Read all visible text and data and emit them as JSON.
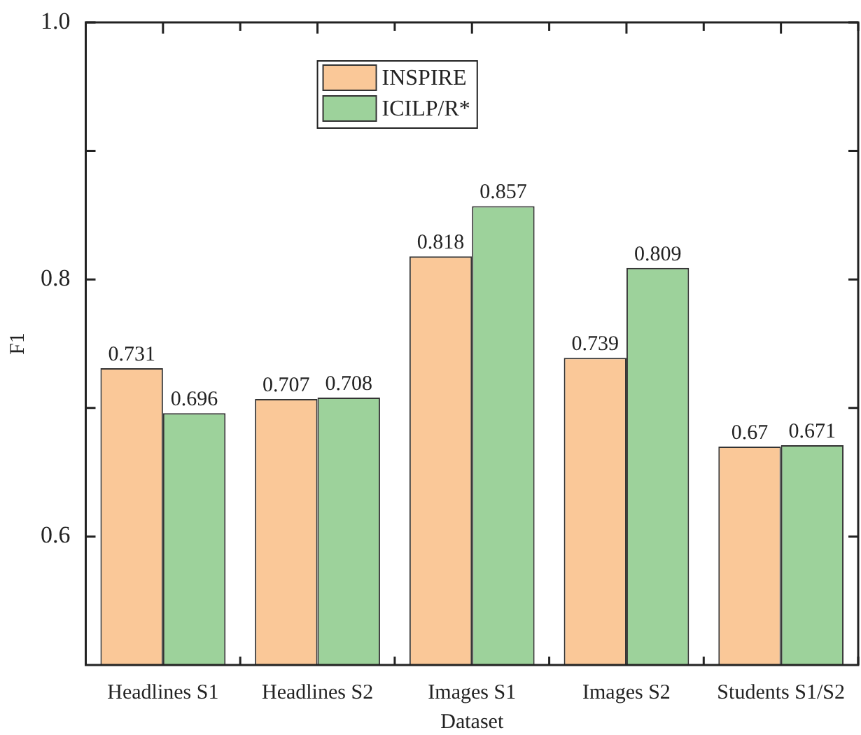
{
  "chart_data": {
    "type": "bar",
    "xlabel": "Dataset",
    "ylabel": "F1",
    "categories": [
      "Headlines S1",
      "Headlines S2",
      "Images S1",
      "Images S2",
      "Students S1/S2"
    ],
    "series": [
      {
        "name": "INSPIRE",
        "color": "#fac898",
        "values": [
          0.731,
          0.707,
          0.818,
          0.739,
          0.67
        ]
      },
      {
        "name": "ICILP/R*",
        "color": "#9dd29b",
        "values": [
          0.696,
          0.708,
          0.857,
          0.809,
          0.671
        ]
      }
    ],
    "ylim": [
      0.5,
      1.0
    ],
    "yticks": [
      {
        "value": 0.6,
        "label": "0.6"
      },
      {
        "value": 0.7,
        "label": null
      },
      {
        "value": 0.8,
        "label": "0.8"
      },
      {
        "value": 0.9,
        "label": null
      },
      {
        "value": 1.0,
        "label": "1.0"
      }
    ],
    "data_labels": true,
    "legend": "top"
  }
}
